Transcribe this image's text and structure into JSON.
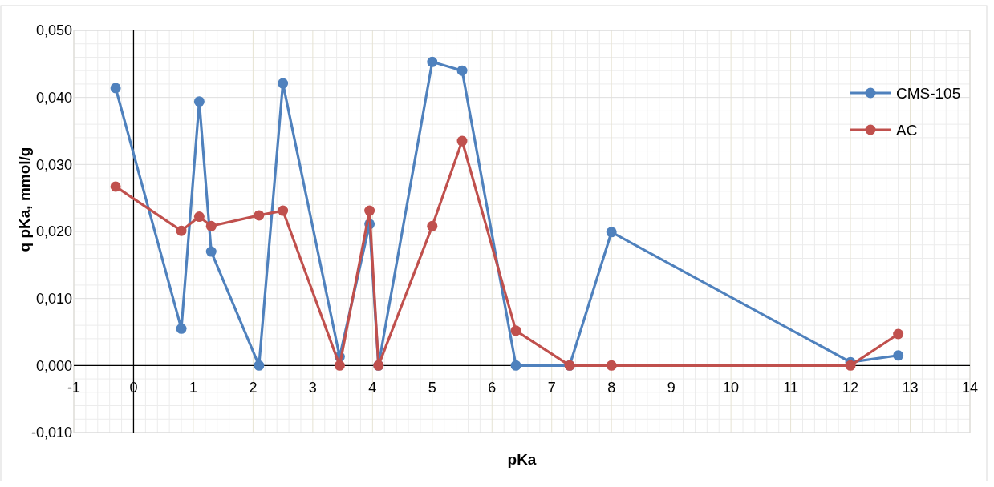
{
  "chart_data": {
    "type": "line",
    "xlabel": "pKa",
    "ylabel": "q pKa, mmol/g",
    "xlim": [
      -1,
      14
    ],
    "ylim": [
      -0.01,
      0.05
    ],
    "xticks": [
      -1,
      0,
      1,
      2,
      3,
      4,
      5,
      6,
      7,
      8,
      9,
      10,
      11,
      12,
      13,
      14
    ],
    "yticks": [
      {
        "value": -0.01,
        "label": "-0,010"
      },
      {
        "value": 0,
        "label": "0,000"
      },
      {
        "value": 0.01,
        "label": "0,010"
      },
      {
        "value": 0.02,
        "label": "0,020"
      },
      {
        "value": 0.03,
        "label": "0,030"
      },
      {
        "value": 0.04,
        "label": "0,040"
      },
      {
        "value": 0.05,
        "label": "0,050"
      }
    ],
    "grid": true,
    "legend": "top right",
    "marker": "circle",
    "line_style": "solid",
    "series": [
      {
        "name": "CMS-105",
        "color": "#4f81bd",
        "x": [
          -0.3,
          0.8,
          1.1,
          1.3,
          2.1,
          2.5,
          3.45,
          3.95,
          4.1,
          5.0,
          5.5,
          6.4,
          7.3,
          8.0,
          12.0,
          12.8
        ],
        "values": [
          0.0414,
          0.0055,
          0.0394,
          0.017,
          0.0,
          0.0421,
          0.0013,
          0.0211,
          0.0,
          0.0453,
          0.044,
          0.0,
          0.0,
          0.0199,
          0.0005,
          0.0015
        ]
      },
      {
        "name": "AC",
        "color": "#c0504d",
        "x": [
          -0.3,
          0.8,
          1.1,
          1.3,
          2.1,
          2.5,
          3.45,
          3.95,
          4.1,
          5.0,
          5.5,
          6.4,
          7.3,
          8.0,
          12.0,
          12.8
        ],
        "values": [
          0.0267,
          0.0201,
          0.0222,
          0.0208,
          0.0224,
          0.0231,
          0.0,
          0.0231,
          0.0,
          0.0208,
          0.0335,
          0.0052,
          0.0,
          0.0,
          0.0,
          0.0047
        ]
      }
    ]
  }
}
